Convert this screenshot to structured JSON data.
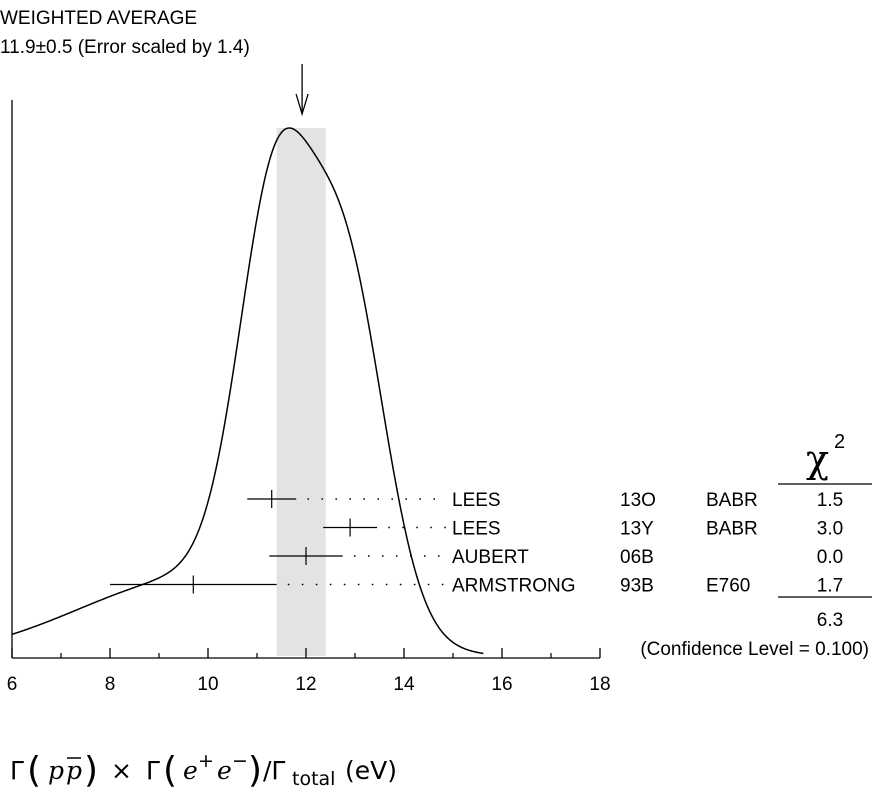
{
  "header": {
    "line1": "WEIGHTED AVERAGE",
    "line2": "11.9±0.5 (Error scaled by 1.4)"
  },
  "chi2_header": {
    "symbol": "χ",
    "exponent": "2"
  },
  "chart_data": {
    "type": "ideogram",
    "xlim": [
      6,
      18
    ],
    "x_ticks": [
      "6",
      "8",
      "10",
      "12",
      "14",
      "16",
      "18"
    ],
    "xlabel": {
      "gamma": "Γ",
      "p": "p",
      "pbar": "p",
      "times": "×",
      "e": "e",
      "plus": "+",
      "minus": "−",
      "slash_gamma": "/Γ",
      "total": "total",
      "unit": "(eV)"
    },
    "weighted_average": {
      "value": 11.9,
      "error": 0.5,
      "scale_factor": 1.4
    },
    "measurements": [
      {
        "author": "LEES",
        "ref": "13O",
        "experiment": "BABR",
        "value": 11.3,
        "err_low": 0.5,
        "err_high": 0.5,
        "chi2": "1.5"
      },
      {
        "author": "LEES",
        "ref": "13Y",
        "experiment": "BABR",
        "value": 12.9,
        "err_low": 0.55,
        "err_high": 0.55,
        "chi2": "3.0"
      },
      {
        "author": "AUBERT",
        "ref": "06B",
        "experiment": "",
        "value": 12.0,
        "err_low": 0.75,
        "err_high": 0.75,
        "chi2": "0.0"
      },
      {
        "author": "ARMSTRONG",
        "ref": "93B",
        "experiment": "E760",
        "value": 9.7,
        "err_low": 1.7,
        "err_high": 1.7,
        "chi2": "1.7"
      }
    ],
    "chi2_total": "6.3",
    "confidence_level": "(Confidence Level = 0.100)"
  }
}
